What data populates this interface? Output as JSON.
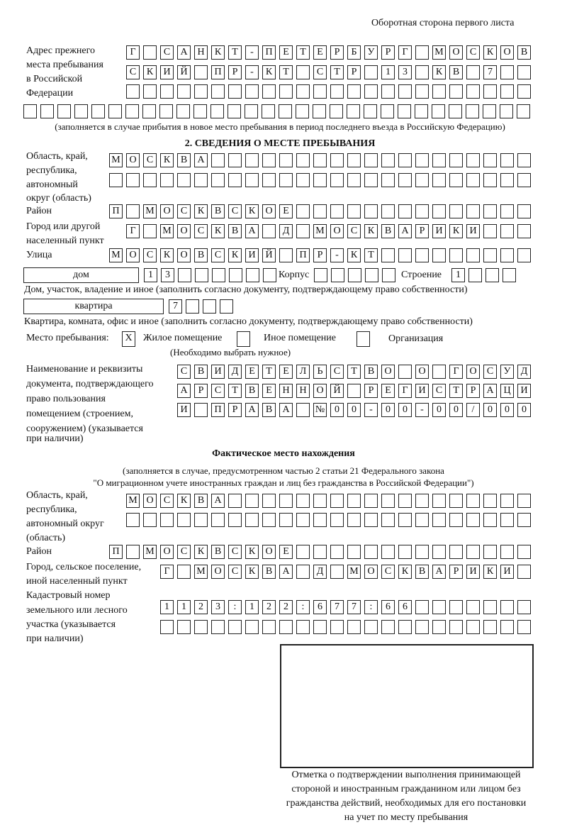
{
  "page_header": "Оборотная сторона первого листа",
  "previous_address": {
    "label": [
      "Адрес прежнего",
      "места пребывания",
      "в Российской",
      "Федерации"
    ],
    "rows": [
      [
        "Г",
        "",
        "С",
        "А",
        "Н",
        "К",
        "Т",
        "-",
        "П",
        "Е",
        "Т",
        "Е",
        "Р",
        "Б",
        "У",
        "Р",
        "Г",
        "",
        "М",
        "О",
        "С",
        "К",
        "О",
        "В"
      ],
      [
        "С",
        "К",
        "И",
        "Й",
        "",
        "П",
        "Р",
        "-",
        "К",
        "Т",
        "",
        "С",
        "Т",
        "Р",
        "",
        "1",
        "3",
        "",
        "К",
        "В",
        "",
        "7",
        "",
        ""
      ],
      [
        "",
        "",
        "",
        "",
        "",
        "",
        "",
        "",
        "",
        "",
        "",
        "",
        "",
        "",
        "",
        "",
        "",
        "",
        "",
        "",
        "",
        "",
        "",
        ""
      ],
      [
        "",
        "",
        "",
        "",
        "",
        "",
        "",
        "",
        "",
        "",
        "",
        "",
        "",
        "",
        "",
        "",
        "",
        "",
        "",
        "",
        "",
        "",
        "",
        "",
        "",
        "",
        "",
        "",
        "",
        ""
      ]
    ],
    "note": "(заполняется в случае прибытия в новое место пребывания в период последнего въезда в Российскую Федерацию)"
  },
  "section2": {
    "title": "2. СВЕДЕНИЯ О МЕСТЕ ПРЕБЫВАНИЯ",
    "region_label": [
      "Область, край,",
      "республика,",
      "автономный",
      "округ (область)"
    ],
    "region_rows": [
      [
        "М",
        "О",
        "С",
        "К",
        "В",
        "А",
        "",
        "",
        "",
        "",
        "",
        "",
        "",
        "",
        "",
        "",
        "",
        "",
        "",
        "",
        "",
        "",
        "",
        "",
        ""
      ],
      [
        "",
        "",
        "",
        "",
        "",
        "",
        "",
        "",
        "",
        "",
        "",
        "",
        "",
        "",
        "",
        "",
        "",
        "",
        "",
        "",
        "",
        "",
        "",
        "",
        ""
      ]
    ],
    "district_label": "Район",
    "district_row": [
      "П",
      "",
      "М",
      "О",
      "С",
      "К",
      "В",
      "С",
      "К",
      "О",
      "Е",
      "",
      "",
      "",
      "",
      "",
      "",
      "",
      "",
      "",
      "",
      "",
      "",
      "",
      ""
    ],
    "city_label": [
      "Город или другой",
      "населенный пункт"
    ],
    "city_row": [
      "Г",
      "",
      "М",
      "О",
      "С",
      "К",
      "В",
      "А",
      "",
      "Д",
      "",
      "М",
      "О",
      "С",
      "К",
      "В",
      "А",
      "Р",
      "И",
      "К",
      "И",
      "",
      "",
      ""
    ],
    "street_label": "Улица",
    "street_row": [
      "М",
      "О",
      "С",
      "К",
      "О",
      "В",
      "С",
      "К",
      "И",
      "Й",
      "",
      "П",
      "Р",
      "-",
      "К",
      "Т",
      "",
      "",
      "",
      "",
      "",
      "",
      "",
      "",
      ""
    ],
    "house_type": "дом",
    "house_cells": [
      "1",
      "3",
      "",
      "",
      "",
      "",
      "",
      ""
    ],
    "korpus_label": "Корпус",
    "korpus_cells": [
      "",
      "",
      "",
      "",
      ""
    ],
    "building_label": "Строение",
    "building_cells": [
      "1",
      "",
      "",
      ""
    ],
    "house_note": "Дом, участок, владение и иное (заполнить согласно документу, подтверждающему право собственности)",
    "apt_type": "квартира",
    "apt_cells": [
      "7",
      "",
      "",
      ""
    ],
    "apt_note": "Квартира, комната, офис и иное (заполнить согласно документу, подтверждающему право собственности)",
    "place_label": "Место пребывания:",
    "place_options": [
      {
        "mark": "X",
        "label": "Жилое помещение"
      },
      {
        "mark": "",
        "label": "Иное помещение"
      },
      {
        "mark": "",
        "label": "Организация"
      }
    ],
    "place_note": "(Необходимо выбрать нужное)",
    "doc_label": [
      "Наименование и реквизиты",
      "документа, подтверждающего",
      "право пользования",
      "помещением (строением,",
      "сооружением) (указывается",
      "при наличии)"
    ],
    "doc_rows": [
      [
        "С",
        "В",
        "И",
        "Д",
        "Е",
        "Т",
        "Е",
        "Л",
        "Ь",
        "С",
        "Т",
        "В",
        "О",
        "",
        "О",
        "",
        "Г",
        "О",
        "С",
        "У",
        "Д"
      ],
      [
        "А",
        "Р",
        "С",
        "Т",
        "В",
        "Е",
        "Н",
        "Н",
        "О",
        "Й",
        "",
        "Р",
        "Е",
        "Г",
        "И",
        "С",
        "Т",
        "Р",
        "А",
        "Ц",
        "И"
      ],
      [
        "И",
        "",
        "П",
        "Р",
        "А",
        "В",
        "А",
        "",
        "№",
        "0",
        "0",
        "-",
        "0",
        "0",
        "-",
        "0",
        "0",
        "/",
        "0",
        "0",
        "0"
      ]
    ]
  },
  "actual": {
    "title": "Фактическое место нахождения",
    "note": [
      "(заполняется в случае, предусмотренном частью 2 статьи 21 Федерального закона",
      "\"О миграционном учете иностранных граждан и лиц без гражданства в Российской Федерации\")"
    ],
    "region_label": [
      "Область, край,",
      "республика,",
      "автономный округ",
      "(область)"
    ],
    "region_rows": [
      [
        "М",
        "О",
        "С",
        "К",
        "В",
        "А",
        "",
        "",
        "",
        "",
        "",
        "",
        "",
        "",
        "",
        "",
        "",
        "",
        "",
        "",
        "",
        "",
        "",
        ""
      ],
      [
        "",
        "",
        "",
        "",
        "",
        "",
        "",
        "",
        "",
        "",
        "",
        "",
        "",
        "",
        "",
        "",
        "",
        "",
        "",
        "",
        "",
        "",
        "",
        ""
      ]
    ],
    "district_label": "Район",
    "district_row": [
      "П",
      "",
      "М",
      "О",
      "С",
      "К",
      "В",
      "С",
      "К",
      "О",
      "Е",
      "",
      "",
      "",
      "",
      "",
      "",
      "",
      "",
      "",
      "",
      "",
      "",
      "",
      ""
    ],
    "city_label": [
      "Город, сельское поселение,",
      "иной населенный пункт"
    ],
    "city_row": [
      "Г",
      "",
      "М",
      "О",
      "С",
      "К",
      "В",
      "А",
      "",
      "Д",
      "",
      "М",
      "О",
      "С",
      "К",
      "В",
      "А",
      "Р",
      "И",
      "К",
      "И",
      ""
    ],
    "cadastral_label": [
      "Кадастровый номер",
      "земельного или лесного",
      "участка (указывается",
      "при наличии)"
    ],
    "cadastral_rows": [
      [
        "1",
        "1",
        "2",
        "3",
        ":",
        "1",
        "2",
        "2",
        ":",
        "6",
        "7",
        "7",
        ":",
        "6",
        "6",
        "",
        "",
        "",
        "",
        "",
        "",
        ""
      ],
      [
        "",
        "",
        "",
        "",
        "",
        "",
        "",
        "",
        "",
        "",
        "",
        "",
        "",
        "",
        "",
        "",
        "",
        "",
        "",
        "",
        "",
        ""
      ]
    ]
  },
  "confirmation_caption": [
    "Отметка о подтверждении выполнения принимающей",
    "стороной и иностранным гражданином или лицом без",
    "гражданства действий, необходимых для его постановки",
    "на учет по месту пребывания"
  ]
}
